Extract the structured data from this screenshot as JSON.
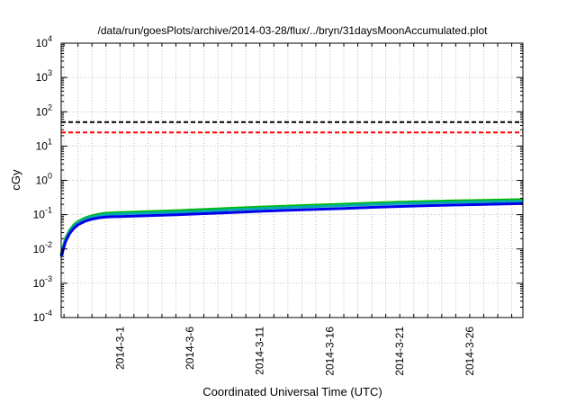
{
  "chart_data": {
    "type": "line",
    "title": "/data/run/goesPlots/archive/2014-03-28/flux/../bryn/31daysMoonAccumulated.plot",
    "xlabel": "Coordinated Universal Time (UTC)",
    "ylabel": "cGy",
    "yscale": "log",
    "ylim": [
      0.0001,
      10000
    ],
    "xlim_days": [
      -4.2,
      28.8
    ],
    "yticks": [
      {
        "base": "10",
        "exp": "-4",
        "value": 0.0001
      },
      {
        "base": "10",
        "exp": "-3",
        "value": 0.001
      },
      {
        "base": "10",
        "exp": "-2",
        "value": 0.01
      },
      {
        "base": "10",
        "exp": "-1",
        "value": 0.1
      },
      {
        "base": "10",
        "exp": "0",
        "value": 1
      },
      {
        "base": "10",
        "exp": "1",
        "value": 10
      },
      {
        "base": "10",
        "exp": "2",
        "value": 100
      },
      {
        "base": "10",
        "exp": "3",
        "value": 1000
      },
      {
        "base": "10",
        "exp": "4",
        "value": 10000
      }
    ],
    "xticks": [
      {
        "label": "2014-3-1",
        "day": 0
      },
      {
        "label": "2014-3-6",
        "day": 5
      },
      {
        "label": "2014-3-11",
        "day": 10
      },
      {
        "label": "2014-3-16",
        "day": 15
      },
      {
        "label": "2014-3-21",
        "day": 20
      },
      {
        "label": "2014-3-26",
        "day": 25
      }
    ],
    "grid": true,
    "thresholds": [
      {
        "value": 50,
        "color": "#000000",
        "dash": true
      },
      {
        "value": 25,
        "color": "#ff0000",
        "dash": true
      }
    ],
    "series": [
      {
        "color": "#00bb00",
        "width": 3,
        "points": [
          [
            -4.2,
            0.007
          ],
          [
            -3.9,
            0.02
          ],
          [
            -3.6,
            0.035
          ],
          [
            -3.3,
            0.05
          ],
          [
            -3.0,
            0.063
          ],
          [
            -2.5,
            0.08
          ],
          [
            -2.0,
            0.093
          ],
          [
            -1.5,
            0.103
          ],
          [
            -1.0,
            0.11
          ],
          [
            -0.5,
            0.113
          ],
          [
            0,
            0.116
          ],
          [
            2,
            0.123
          ],
          [
            4,
            0.13
          ],
          [
            6,
            0.141
          ],
          [
            8,
            0.154
          ],
          [
            10,
            0.166
          ],
          [
            12,
            0.178
          ],
          [
            14,
            0.19
          ],
          [
            16,
            0.202
          ],
          [
            18,
            0.217
          ],
          [
            20,
            0.23
          ],
          [
            22,
            0.242
          ],
          [
            24,
            0.252
          ],
          [
            26,
            0.262
          ],
          [
            28.8,
            0.275
          ]
        ]
      },
      {
        "color": "#00aaaa",
        "width": 3,
        "points": [
          [
            -4.2,
            0.0065
          ],
          [
            -3.9,
            0.018
          ],
          [
            -3.6,
            0.032
          ],
          [
            -3.3,
            0.046
          ],
          [
            -3.0,
            0.058
          ],
          [
            -2.5,
            0.074
          ],
          [
            -2.0,
            0.086
          ],
          [
            -1.5,
            0.095
          ],
          [
            -1.0,
            0.101
          ],
          [
            -0.5,
            0.104
          ],
          [
            0,
            0.106
          ],
          [
            2,
            0.112
          ],
          [
            4,
            0.118
          ],
          [
            6,
            0.128
          ],
          [
            8,
            0.14
          ],
          [
            10,
            0.151
          ],
          [
            12,
            0.162
          ],
          [
            14,
            0.173
          ],
          [
            16,
            0.184
          ],
          [
            18,
            0.198
          ],
          [
            20,
            0.21
          ],
          [
            22,
            0.221
          ],
          [
            24,
            0.23
          ],
          [
            26,
            0.239
          ],
          [
            28.8,
            0.25
          ]
        ]
      },
      {
        "color": "#0000ee",
        "width": 3,
        "points": [
          [
            -4.2,
            0.006
          ],
          [
            -3.9,
            0.016
          ],
          [
            -3.6,
            0.028
          ],
          [
            -3.3,
            0.04
          ],
          [
            -3.0,
            0.051
          ],
          [
            -2.5,
            0.064
          ],
          [
            -2.0,
            0.074
          ],
          [
            -1.5,
            0.081
          ],
          [
            -1.0,
            0.085
          ],
          [
            -0.5,
            0.087
          ],
          [
            0,
            0.088
          ],
          [
            2,
            0.093
          ],
          [
            4,
            0.099
          ],
          [
            6,
            0.107
          ],
          [
            8,
            0.116
          ],
          [
            10,
            0.125
          ],
          [
            12,
            0.134
          ],
          [
            14,
            0.143
          ],
          [
            16,
            0.152
          ],
          [
            18,
            0.163
          ],
          [
            20,
            0.174
          ],
          [
            22,
            0.183
          ],
          [
            24,
            0.191
          ],
          [
            26,
            0.199
          ],
          [
            28.8,
            0.21
          ]
        ]
      }
    ]
  }
}
